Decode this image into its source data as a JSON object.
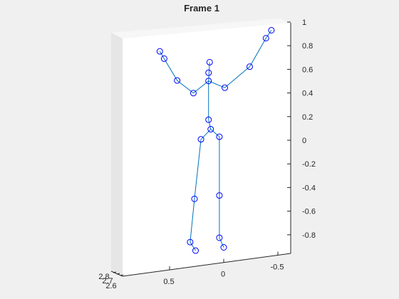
{
  "chart_data": {
    "type": "scatter",
    "title": "Frame 1",
    "xlabel": "",
    "ylabel": "",
    "zlabel": "",
    "grid": false,
    "z_ticks": [
      "1",
      "0.8",
      "0.6",
      "0.4",
      "0.2",
      "0",
      "-0.2",
      "-0.4",
      "-0.6",
      "-0.8"
    ],
    "z_tick_values": [
      1,
      0.8,
      0.6,
      0.4,
      0.2,
      0,
      -0.2,
      -0.4,
      -0.6,
      -0.8
    ],
    "y_ticks": [
      "0.5",
      "0",
      "-0.5"
    ],
    "y_tick_values": [
      0.5,
      0,
      -0.5
    ],
    "x_ticks": [
      "2.8",
      "2.7",
      "2.6"
    ],
    "x_tick_values": [
      2.8,
      2.7,
      2.6
    ],
    "zlim": [
      -0.92,
      1.0
    ],
    "joints": [
      {
        "id": "spine-base",
        "y": 0.12,
        "z": 0.1
      },
      {
        "id": "spine-mid",
        "y": 0.14,
        "z": 0.51
      },
      {
        "id": "neck",
        "y": 0.14,
        "z": 0.58
      },
      {
        "id": "head",
        "y": 0.13,
        "z": 0.67
      },
      {
        "id": "shoulder-left",
        "y": 0.28,
        "z": 0.4
      },
      {
        "id": "elbow-left",
        "y": 0.43,
        "z": 0.5
      },
      {
        "id": "wrist-left",
        "y": 0.55,
        "z": 0.68
      },
      {
        "id": "hand-left",
        "y": 0.59,
        "z": 0.74
      },
      {
        "id": "shoulder-right",
        "y": -0.01,
        "z": 0.46
      },
      {
        "id": "elbow-right",
        "y": -0.24,
        "z": 0.65
      },
      {
        "id": "wrist-right",
        "y": -0.39,
        "z": 0.9
      },
      {
        "id": "hand-right",
        "y": -0.44,
        "z": 0.97
      },
      {
        "id": "hip-left",
        "y": 0.21,
        "z": 0.01
      },
      {
        "id": "knee-left",
        "y": 0.27,
        "z": -0.5
      },
      {
        "id": "ankle-left",
        "y": 0.31,
        "z": -0.87
      },
      {
        "id": "foot-left",
        "y": 0.26,
        "z": -0.94
      },
      {
        "id": "hip-right",
        "y": 0.04,
        "z": 0.04
      },
      {
        "id": "knee-right",
        "y": 0.04,
        "z": -0.46
      },
      {
        "id": "ankle-right",
        "y": 0.04,
        "z": -0.82
      },
      {
        "id": "foot-right",
        "y": 0.0,
        "z": -0.9
      },
      {
        "id": "spine-shoulder",
        "y": 0.14,
        "z": 0.18
      }
    ],
    "bones": [
      [
        "head",
        "spine-mid"
      ],
      [
        "hand-left",
        "wrist-left"
      ],
      [
        "wrist-left",
        "elbow-left"
      ],
      [
        "elbow-left",
        "shoulder-left"
      ],
      [
        "shoulder-left",
        "spine-mid"
      ],
      [
        "spine-mid",
        "shoulder-right"
      ],
      [
        "shoulder-right",
        "elbow-right"
      ],
      [
        "elbow-right",
        "wrist-right"
      ],
      [
        "wrist-right",
        "hand-right"
      ],
      [
        "spine-mid",
        "spine-shoulder"
      ],
      [
        "spine-shoulder",
        "spine-base"
      ],
      [
        "spine-base",
        "hip-left"
      ],
      [
        "hip-left",
        "knee-left"
      ],
      [
        "knee-left",
        "ankle-left"
      ],
      [
        "ankle-left",
        "foot-left"
      ],
      [
        "spine-base",
        "hip-right"
      ],
      [
        "hip-right",
        "knee-right"
      ],
      [
        "knee-right",
        "ankle-right"
      ],
      [
        "ankle-right",
        "foot-right"
      ]
    ],
    "colors": {
      "bone": "#0072bd",
      "joint": "#0000ff",
      "box_front": "#ffffff",
      "box_top": "#f7f7f7",
      "box_side": "#e6e6e6",
      "figure_bg": "#f0f0f0"
    }
  }
}
